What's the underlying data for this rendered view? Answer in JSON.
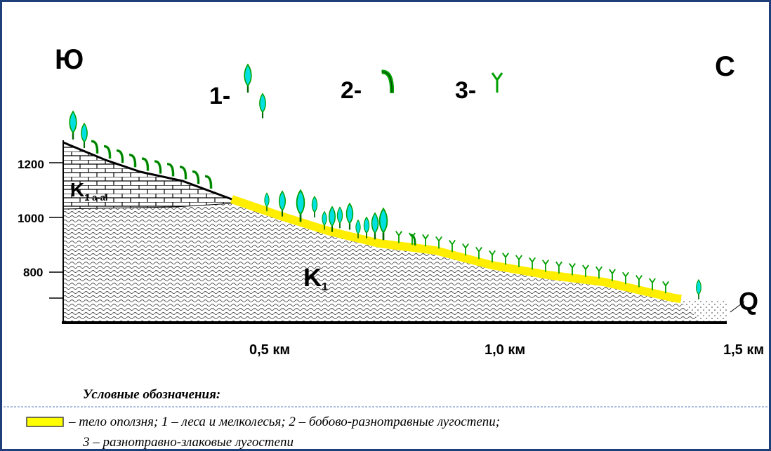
{
  "header": {
    "south": "Ю",
    "north": "С"
  },
  "vegetation_keys": [
    "1-",
    "2-",
    "3-"
  ],
  "elevation_ticks": [
    1200,
    1000,
    800
  ],
  "distance_labels": [
    "0,5 км",
    "1,0 км",
    "1,5 км"
  ],
  "strata": [
    {
      "symbol": "K",
      "index": "1 a-al"
    },
    {
      "symbol": "K",
      "index": "1"
    },
    {
      "symbol": "Q"
    }
  ],
  "legend": {
    "title": "Условные обозначения:",
    "line1": "– тело оползня; 1 – леса и мелколесья; 2 – бобово-разнотравные лугостепи;",
    "line2": "3 – разнотравно-злаковые лугостепи"
  }
}
